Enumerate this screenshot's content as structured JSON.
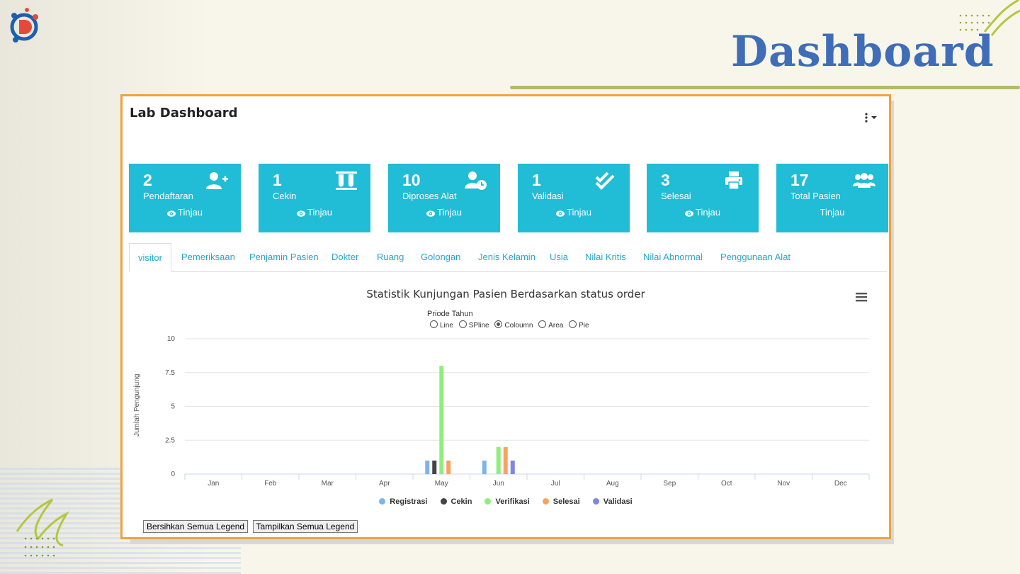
{
  "page": {
    "title": "Dashboard"
  },
  "card": {
    "title": "Lab Dashboard"
  },
  "tiles": [
    {
      "count": "2",
      "label": "Pendaftaran",
      "link": "Tinjau",
      "icon": "user-plus-icon"
    },
    {
      "count": "1",
      "label": "Cekin",
      "link": "Tinjau",
      "icon": "test-tubes-icon"
    },
    {
      "count": "10",
      "label": "Diproses Alat",
      "link": "Tinjau",
      "icon": "user-clock-icon"
    },
    {
      "count": "1",
      "label": "Validasi",
      "link": "Tinjau",
      "icon": "double-check-icon"
    },
    {
      "count": "3",
      "label": "Selesai",
      "link": "Tinjau",
      "icon": "printer-icon"
    },
    {
      "count": "17",
      "label": "Total Pasien",
      "link": "Tinjau",
      "icon": "users-icon"
    }
  ],
  "tabs": [
    "visitor",
    "Pemeriksaan",
    "Penjamin Pasien",
    "Dokter",
    "Ruang",
    "Golongan",
    "Jenis Kelamin",
    "Usia",
    "Nilai Kritis",
    "Nilai Abnormal",
    "Penggunaan Alat"
  ],
  "active_tab": "visitor",
  "chart_controls": {
    "period_label": "Priode Tahun",
    "types": [
      "Line",
      "SPline",
      "Coloumn",
      "Area",
      "Pie"
    ],
    "selected_type": "Coloumn"
  },
  "buttons": {
    "clear_legend": "Bersihkan Semua Legend",
    "show_legend": "Tampilkan Semua Legend"
  },
  "chart_data": {
    "type": "bar",
    "title": "Statistik Kunjungan Pasien Berdasarkan status order",
    "ylabel": "Jumlah Pengunjung",
    "xlabel": "",
    "categories": [
      "Jan",
      "Feb",
      "Mar",
      "Apr",
      "May",
      "Jun",
      "Jul",
      "Aug",
      "Sep",
      "Oct",
      "Nov",
      "Dec"
    ],
    "ylim": [
      0,
      10
    ],
    "yticks": [
      "0",
      "2.5",
      "5",
      "7.5",
      "10"
    ],
    "grid": true,
    "legend_position": "bottom",
    "series": [
      {
        "name": "Registrasi",
        "color": "#7cb5ec",
        "values": [
          0,
          0,
          0,
          0,
          1,
          1,
          0,
          0,
          0,
          0,
          0,
          0
        ]
      },
      {
        "name": "Cekin",
        "color": "#434348",
        "values": [
          0,
          0,
          0,
          0,
          1,
          0,
          0,
          0,
          0,
          0,
          0,
          0
        ]
      },
      {
        "name": "Verifikasi",
        "color": "#90ed7d",
        "values": [
          0,
          0,
          0,
          0,
          8,
          2,
          0,
          0,
          0,
          0,
          0,
          0
        ]
      },
      {
        "name": "Selesai",
        "color": "#f7a35c",
        "values": [
          0,
          0,
          0,
          0,
          1,
          2,
          0,
          0,
          0,
          0,
          0,
          0
        ]
      },
      {
        "name": "Validasi",
        "color": "#8085e9",
        "values": [
          0,
          0,
          0,
          0,
          0,
          1,
          0,
          0,
          0,
          0,
          0,
          0
        ]
      }
    ]
  }
}
